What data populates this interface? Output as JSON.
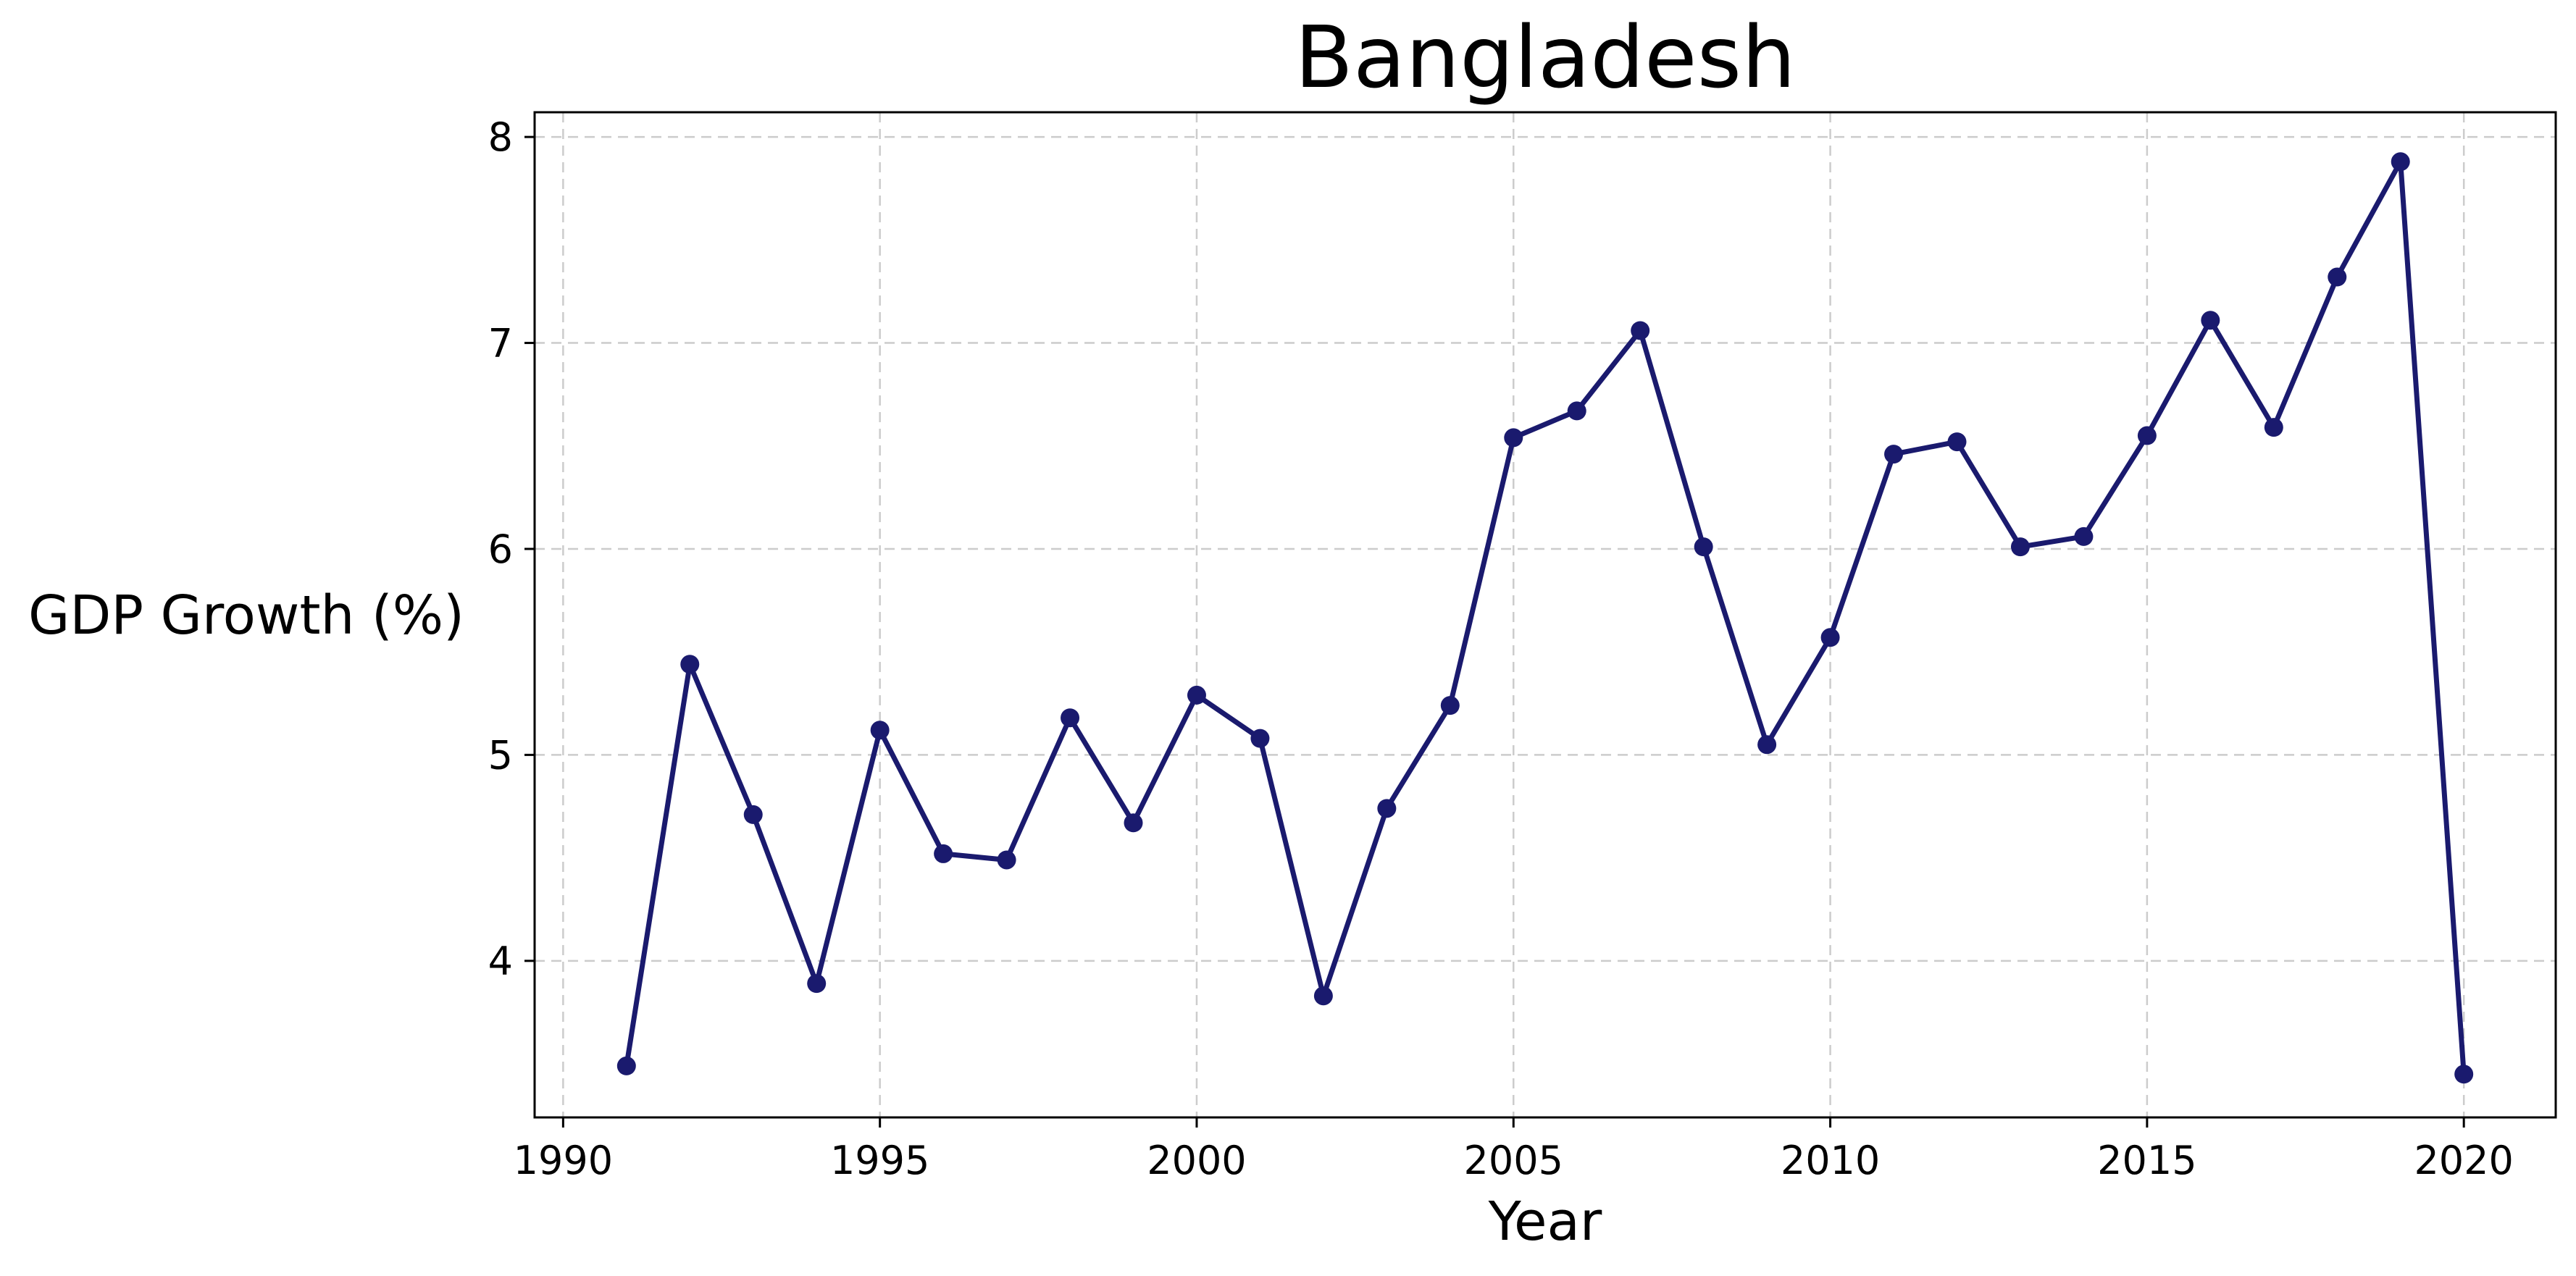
{
  "chart_data": {
    "type": "line",
    "title": "Bangladesh",
    "xlabel": "Year",
    "ylabel": "GDP Growth (%)",
    "xlim": [
      1989.55,
      2021.45
    ],
    "ylim": [
      3.24,
      8.12
    ],
    "xticks": [
      1990,
      1995,
      2000,
      2005,
      2010,
      2015,
      2020
    ],
    "yticks": [
      4,
      5,
      6,
      7,
      8
    ],
    "grid": true,
    "line_color": "#1a1a6e",
    "series": [
      {
        "x": [
          1991,
          1992,
          1993,
          1994,
          1995,
          1996,
          1997,
          1998,
          1999,
          2000,
          2001,
          2002,
          2003,
          2004,
          2005,
          2006,
          2007,
          2008,
          2009,
          2010,
          2011,
          2012,
          2013,
          2014,
          2015,
          2016,
          2017,
          2018,
          2019,
          2020
        ],
        "y": [
          3.49,
          5.44,
          4.71,
          3.89,
          5.12,
          4.52,
          4.49,
          5.18,
          4.67,
          5.29,
          5.08,
          3.83,
          4.74,
          5.24,
          6.54,
          6.67,
          7.06,
          6.01,
          5.05,
          5.57,
          6.46,
          6.52,
          6.01,
          6.06,
          6.55,
          7.11,
          6.59,
          7.32,
          7.88,
          3.45
        ]
      }
    ]
  }
}
